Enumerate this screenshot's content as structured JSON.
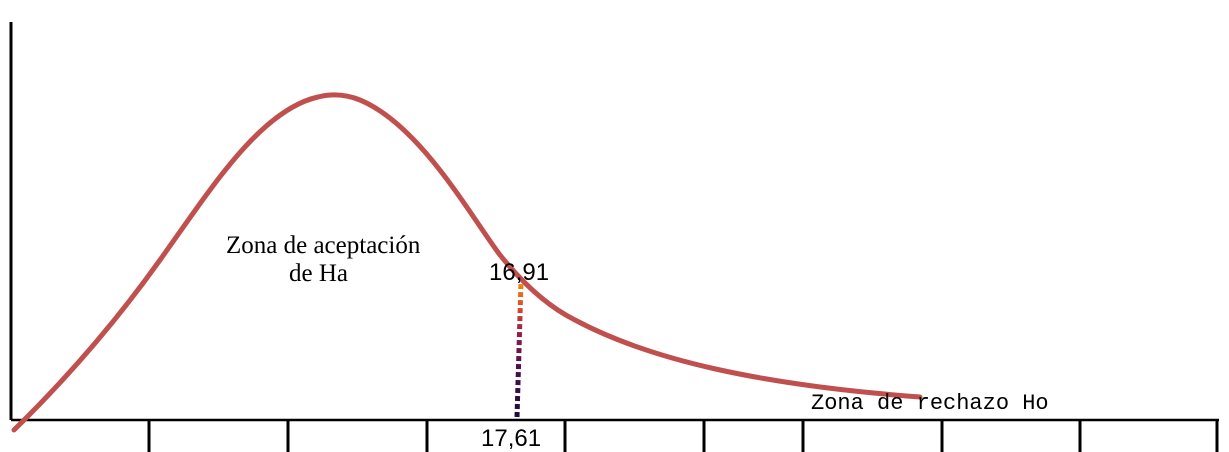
{
  "labels": {
    "acceptance_line1": "Zona de aceptación",
    "acceptance_line2": "de Ha",
    "critical_value": "16,91",
    "observed_value": "17,61",
    "rejection": "Zona de rechazo Ho"
  },
  "colors": {
    "curve": "#c0504d",
    "axis": "#000000",
    "text": "#000000",
    "dotted_gradient": [
      "#1a0d3d",
      "#4b0c55",
      "#8c1a4a",
      "#d9482c",
      "#f08a12"
    ]
  },
  "x_axis": {
    "tick_count": 9
  }
}
